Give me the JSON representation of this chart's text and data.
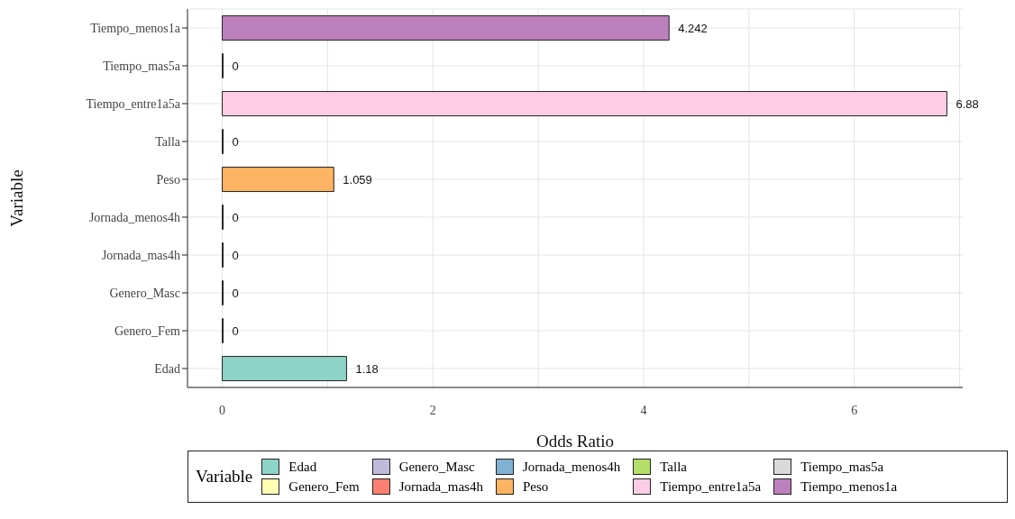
{
  "chart_data": {
    "type": "bar",
    "orientation": "horizontal",
    "stacked": true,
    "xlabel": "Odds Ratio",
    "ylabel": "Variable",
    "legend_title": "Variable",
    "categories": [
      "Tiempo_menos1a",
      "Tiempo_mas5a",
      "Tiempo_entre1a5a",
      "Talla",
      "Peso",
      "Jornada_menos4h",
      "Jornada_mas4h",
      "Genero_Masc",
      "Genero_Fem",
      "Edad"
    ],
    "series": [
      {
        "name": "Edad",
        "color": "#8dd3c7",
        "values": [
          null,
          null,
          null,
          null,
          null,
          null,
          null,
          null,
          null,
          1.18
        ]
      },
      {
        "name": "Genero_Fem",
        "color": "#ffffb3",
        "values": [
          null,
          null,
          null,
          null,
          null,
          null,
          null,
          null,
          0,
          null
        ]
      },
      {
        "name": "Genero_Masc",
        "color": "#bebada",
        "values": [
          null,
          null,
          null,
          null,
          null,
          null,
          null,
          0,
          null,
          null
        ]
      },
      {
        "name": "Jornada_mas4h",
        "color": "#fb8072",
        "values": [
          null,
          null,
          null,
          null,
          null,
          null,
          0,
          null,
          null,
          null
        ]
      },
      {
        "name": "Jornada_menos4h",
        "color": "#80b1d3",
        "values": [
          null,
          null,
          null,
          null,
          null,
          0,
          null,
          null,
          null,
          null
        ]
      },
      {
        "name": "Peso",
        "color": "#fdb462",
        "values": [
          null,
          null,
          null,
          null,
          1.059,
          null,
          null,
          null,
          null,
          null
        ]
      },
      {
        "name": "Talla",
        "color": "#b3de69",
        "values": [
          null,
          null,
          null,
          0,
          null,
          null,
          null,
          null,
          null,
          null
        ]
      },
      {
        "name": "Tiempo_entre1a5a",
        "color": "#fccde5",
        "values": [
          null,
          null,
          6.88,
          null,
          null,
          null,
          null,
          null,
          null,
          null
        ]
      },
      {
        "name": "Tiempo_mas5a",
        "color": "#d9d9d9",
        "values": [
          null,
          0,
          null,
          null,
          null,
          null,
          null,
          null,
          null,
          null
        ]
      },
      {
        "name": "Tiempo_menos1a",
        "color": "#bc80bd",
        "values": [
          4.242,
          null,
          null,
          null,
          null,
          null,
          null,
          null,
          null,
          null
        ]
      }
    ],
    "data_labels": true,
    "xlim": [
      -0.33,
      7.03
    ],
    "xticks": [
      0,
      2,
      4,
      6
    ],
    "grid": true,
    "legend": "bottom"
  }
}
